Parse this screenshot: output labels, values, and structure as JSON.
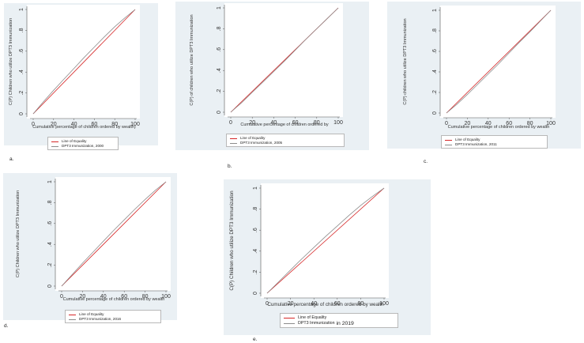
{
  "legend_equality": "Line of Equality",
  "chart_data": [
    {
      "type": "line",
      "panel": "a.",
      "ylabel": "C(P) Children who utilize DPT3 Immunization",
      "xlabel": "Cumulative percentage  of children ordered by wealth)",
      "xlim": [
        0,
        100
      ],
      "ylim": [
        0,
        1
      ],
      "x_ticks": [
        "0",
        "20",
        "40",
        "60",
        "80",
        "100"
      ],
      "y_ticks": [
        "0",
        ".2",
        ".4",
        ".6",
        ".8",
        "1"
      ],
      "legend": [
        "Line of Equality",
        "DPT3 Immunization, 2000"
      ],
      "series": [
        {
          "name": "Line of Equality",
          "x": [
            0,
            100
          ],
          "y": [
            0,
            1
          ],
          "color": "#d62728"
        },
        {
          "name": "DPT3 Immunization, 2000",
          "x": [
            0,
            10,
            20,
            30,
            40,
            50,
            60,
            70,
            80,
            90,
            100
          ],
          "y": [
            0,
            0.115,
            0.225,
            0.33,
            0.435,
            0.54,
            0.64,
            0.74,
            0.835,
            0.92,
            1
          ],
          "color": "#8c8c8c"
        }
      ]
    },
    {
      "type": "line",
      "panel": "b.",
      "ylabel": "C(P) of children who utilize DPT3 Immunization",
      "xlabel": "Cumulative percentage of children ordered by",
      "xlim": [
        0,
        100
      ],
      "ylim": [
        0,
        1
      ],
      "x_ticks": [
        "0",
        "20",
        "40",
        "60",
        "80",
        "100"
      ],
      "y_ticks": [
        "0",
        ".2",
        ".4",
        ".6",
        ".8",
        "1"
      ],
      "legend": [
        "Line of Equality",
        "DPT3 Immunization, 2005"
      ],
      "series": [
        {
          "name": "Line of Equality",
          "x": [
            0,
            100
          ],
          "y": [
            0,
            1
          ],
          "color": "#d62728"
        },
        {
          "name": "DPT3 Immunization, 2005",
          "x": [
            0,
            10,
            20,
            30,
            40,
            50,
            60,
            70,
            80,
            90,
            100
          ],
          "y": [
            0,
            0.09,
            0.19,
            0.29,
            0.39,
            0.49,
            0.595,
            0.7,
            0.8,
            0.9,
            1
          ],
          "color": "#8c8c8c"
        }
      ]
    },
    {
      "type": "line",
      "panel": "c.",
      "ylabel": "C(P) children who utilize DPT3 Immunization",
      "xlabel": "Cumulative percentage of children ordered by wealth",
      "xlim": [
        0,
        100
      ],
      "ylim": [
        0,
        1
      ],
      "x_ticks": [
        "0",
        "20",
        "40",
        "60",
        "80",
        "100"
      ],
      "y_ticks": [
        "0",
        ".2",
        ".4",
        ".6",
        ".8",
        "1"
      ],
      "legend": [
        "Line of Equality",
        "DPT3 Immunization, 2011"
      ],
      "series": [
        {
          "name": "Line of Equality",
          "x": [
            0,
            100
          ],
          "y": [
            0,
            1
          ],
          "color": "#d62728"
        },
        {
          "name": "DPT3 Immunization, 2011",
          "x": [
            0,
            10,
            20,
            30,
            40,
            50,
            60,
            70,
            80,
            90,
            100
          ],
          "y": [
            0,
            0.085,
            0.18,
            0.28,
            0.38,
            0.48,
            0.585,
            0.69,
            0.79,
            0.895,
            1
          ],
          "color": "#8c8c8c"
        }
      ]
    },
    {
      "type": "line",
      "panel": "d.",
      "ylabel": "C(P) Children who utilize DPT3 Immunization",
      "xlabel": "Cumulative percentage of children ordered by wealth",
      "xlim": [
        0,
        100
      ],
      "ylim": [
        0,
        1
      ],
      "x_ticks": [
        "0",
        "20",
        "40",
        "60",
        "80",
        "100"
      ],
      "y_ticks": [
        "0",
        ".2",
        ".4",
        ".6",
        ".8",
        "1"
      ],
      "legend": [
        "Line of Equality",
        "DPT3 Immunization, 2016"
      ],
      "series": [
        {
          "name": "Line of Equality",
          "x": [
            0,
            100
          ],
          "y": [
            0,
            1
          ],
          "color": "#d62728"
        },
        {
          "name": "DPT3 Immunization, 2016",
          "x": [
            0,
            10,
            20,
            30,
            40,
            50,
            60,
            70,
            80,
            90,
            100
          ],
          "y": [
            0,
            0.11,
            0.22,
            0.325,
            0.43,
            0.535,
            0.635,
            0.735,
            0.83,
            0.92,
            1
          ],
          "color": "#8c8c8c"
        }
      ]
    },
    {
      "type": "line",
      "panel": "e.",
      "ylabel": "C(P) Children who utilize DPT3 Immunization",
      "xlabel": "Cumulative percentage of children ordered by wealth",
      "xlim": [
        0,
        100
      ],
      "ylim": [
        0,
        1
      ],
      "x_ticks": [
        "0",
        "20",
        "40",
        "60",
        "80",
        "100"
      ],
      "y_ticks": [
        "0",
        ".2",
        ".4",
        ".6",
        ".8",
        "1"
      ],
      "legend": [
        "Line of Equality",
        "DPT3 Immunization",
        "in 2019"
      ],
      "series": [
        {
          "name": "Line of Equality",
          "x": [
            0,
            100
          ],
          "y": [
            0,
            1
          ],
          "color": "#d62728"
        },
        {
          "name": "DPT3 Immunization in 2019",
          "x": [
            0,
            10,
            20,
            30,
            40,
            50,
            60,
            70,
            80,
            90,
            100
          ],
          "y": [
            0,
            0.11,
            0.22,
            0.33,
            0.435,
            0.54,
            0.64,
            0.74,
            0.835,
            0.92,
            1
          ],
          "color": "#8c8c8c"
        }
      ]
    }
  ]
}
